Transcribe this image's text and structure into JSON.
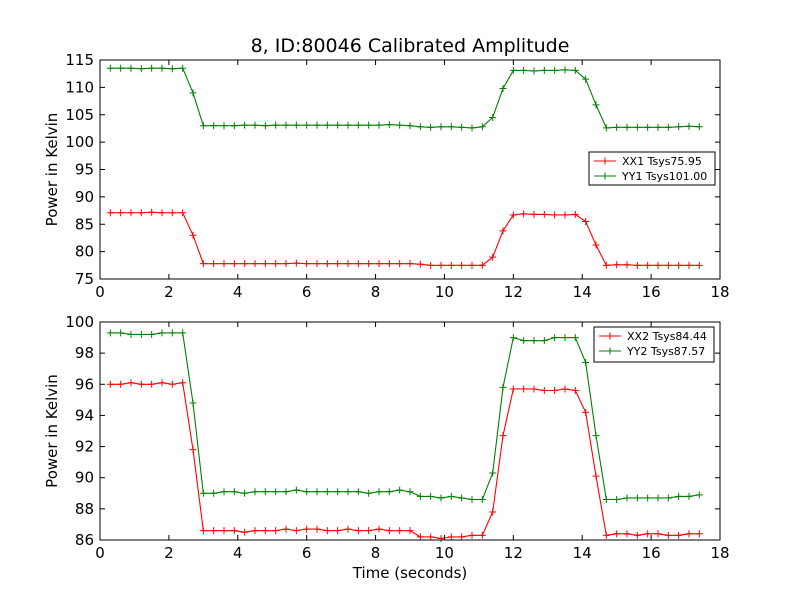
{
  "chart_data": [
    {
      "type": "line",
      "title": "8, ID:80046 Calibrated Amplitude",
      "xlabel": "",
      "ylabel": "Power in Kelvin",
      "xlim": [
        0,
        18
      ],
      "ylim": [
        75,
        115
      ],
      "xticks": [
        0,
        2,
        4,
        6,
        8,
        10,
        12,
        14,
        16,
        18
      ],
      "yticks": [
        75,
        80,
        85,
        90,
        95,
        100,
        105,
        110,
        115
      ],
      "legend_position": "center-right",
      "series": [
        {
          "name": "XX1 Tsys75.95",
          "color": "#ff0000",
          "x": [
            0.3,
            0.6,
            0.9,
            1.2,
            1.5,
            1.8,
            2.1,
            2.4,
            2.7,
            3.0,
            3.3,
            3.6,
            3.9,
            4.2,
            4.5,
            4.8,
            5.1,
            5.4,
            5.7,
            6.0,
            6.3,
            6.6,
            6.9,
            7.2,
            7.5,
            7.8,
            8.1,
            8.4,
            8.7,
            9.0,
            9.3,
            9.6,
            9.9,
            10.2,
            10.5,
            10.8,
            11.1,
            11.4,
            11.7,
            12.0,
            12.3,
            12.6,
            12.9,
            13.2,
            13.5,
            13.8,
            14.1,
            14.4,
            14.7,
            15.0,
            15.3,
            15.6,
            15.9,
            16.2,
            16.5,
            16.8,
            17.1,
            17.4
          ],
          "y": [
            87.1,
            87.1,
            87.1,
            87.1,
            87.2,
            87.1,
            87.1,
            87.1,
            83.0,
            77.8,
            77.8,
            77.8,
            77.8,
            77.8,
            77.8,
            77.8,
            77.8,
            77.8,
            77.9,
            77.8,
            77.8,
            77.8,
            77.8,
            77.8,
            77.8,
            77.8,
            77.8,
            77.8,
            77.8,
            77.8,
            77.7,
            77.5,
            77.5,
            77.5,
            77.5,
            77.5,
            77.5,
            79.0,
            83.8,
            86.7,
            86.9,
            86.8,
            86.8,
            86.7,
            86.7,
            86.8,
            85.5,
            81.2,
            77.5,
            77.6,
            77.6,
            77.5,
            77.5,
            77.5,
            77.5,
            77.5,
            77.5,
            77.5
          ]
        },
        {
          "name": "YY1 Tsys101.00",
          "color": "#008000",
          "x": [
            0.3,
            0.6,
            0.9,
            1.2,
            1.5,
            1.8,
            2.1,
            2.4,
            2.7,
            3.0,
            3.3,
            3.6,
            3.9,
            4.2,
            4.5,
            4.8,
            5.1,
            5.4,
            5.7,
            6.0,
            6.3,
            6.6,
            6.9,
            7.2,
            7.5,
            7.8,
            8.1,
            8.4,
            8.7,
            9.0,
            9.3,
            9.6,
            9.9,
            10.2,
            10.5,
            10.8,
            11.1,
            11.4,
            11.7,
            12.0,
            12.3,
            12.6,
            12.9,
            13.2,
            13.5,
            13.8,
            14.1,
            14.4,
            14.7,
            15.0,
            15.3,
            15.6,
            15.9,
            16.2,
            16.5,
            16.8,
            17.1,
            17.4
          ],
          "y": [
            113.5,
            113.5,
            113.5,
            113.4,
            113.5,
            113.5,
            113.4,
            113.5,
            109.0,
            103.0,
            103.0,
            103.0,
            103.0,
            103.1,
            103.1,
            103.0,
            103.1,
            103.1,
            103.1,
            103.1,
            103.1,
            103.1,
            103.1,
            103.1,
            103.1,
            103.1,
            103.1,
            103.2,
            103.1,
            103.0,
            102.8,
            102.7,
            102.8,
            102.8,
            102.7,
            102.6,
            102.8,
            104.5,
            109.8,
            113.1,
            113.1,
            113.0,
            113.1,
            113.1,
            113.2,
            113.1,
            111.5,
            106.8,
            102.6,
            102.7,
            102.7,
            102.7,
            102.7,
            102.7,
            102.7,
            102.8,
            102.9,
            102.8
          ]
        }
      ]
    },
    {
      "type": "line",
      "title": "",
      "xlabel": "Time (seconds)",
      "ylabel": "Power in Kelvin",
      "xlim": [
        0,
        18
      ],
      "ylim": [
        86,
        100
      ],
      "xticks": [
        0,
        2,
        4,
        6,
        8,
        10,
        12,
        14,
        16,
        18
      ],
      "yticks": [
        86,
        88,
        90,
        92,
        94,
        96,
        98,
        100
      ],
      "legend_position": "top-right",
      "series": [
        {
          "name": "XX2 Tsys84.44",
          "color": "#ff0000",
          "x": [
            0.3,
            0.6,
            0.9,
            1.2,
            1.5,
            1.8,
            2.1,
            2.4,
            2.7,
            3.0,
            3.3,
            3.6,
            3.9,
            4.2,
            4.5,
            4.8,
            5.1,
            5.4,
            5.7,
            6.0,
            6.3,
            6.6,
            6.9,
            7.2,
            7.5,
            7.8,
            8.1,
            8.4,
            8.7,
            9.0,
            9.3,
            9.6,
            9.9,
            10.2,
            10.5,
            10.8,
            11.1,
            11.4,
            11.7,
            12.0,
            12.3,
            12.6,
            12.9,
            13.2,
            13.5,
            13.8,
            14.1,
            14.4,
            14.7,
            15.0,
            15.3,
            15.6,
            15.9,
            16.2,
            16.5,
            16.8,
            17.1,
            17.4
          ],
          "y": [
            96.0,
            96.0,
            96.1,
            96.0,
            96.0,
            96.1,
            96.0,
            96.1,
            91.8,
            86.6,
            86.6,
            86.6,
            86.6,
            86.5,
            86.6,
            86.6,
            86.6,
            86.7,
            86.6,
            86.7,
            86.7,
            86.6,
            86.6,
            86.7,
            86.6,
            86.6,
            86.7,
            86.6,
            86.6,
            86.6,
            86.2,
            86.2,
            86.1,
            86.2,
            86.2,
            86.3,
            86.3,
            87.8,
            92.7,
            95.7,
            95.7,
            95.7,
            95.6,
            95.6,
            95.7,
            95.6,
            94.2,
            90.1,
            86.3,
            86.4,
            86.4,
            86.3,
            86.4,
            86.4,
            86.3,
            86.3,
            86.4,
            86.4
          ]
        },
        {
          "name": "YY2 Tsys87.57",
          "color": "#008000",
          "x": [
            0.3,
            0.6,
            0.9,
            1.2,
            1.5,
            1.8,
            2.1,
            2.4,
            2.7,
            3.0,
            3.3,
            3.6,
            3.9,
            4.2,
            4.5,
            4.8,
            5.1,
            5.4,
            5.7,
            6.0,
            6.3,
            6.6,
            6.9,
            7.2,
            7.5,
            7.8,
            8.1,
            8.4,
            8.7,
            9.0,
            9.3,
            9.6,
            9.9,
            10.2,
            10.5,
            10.8,
            11.1,
            11.4,
            11.7,
            12.0,
            12.3,
            12.6,
            12.9,
            13.2,
            13.5,
            13.8,
            14.1,
            14.4,
            14.7,
            15.0,
            15.3,
            15.6,
            15.9,
            16.2,
            16.5,
            16.8,
            17.1,
            17.4
          ],
          "y": [
            99.3,
            99.3,
            99.2,
            99.2,
            99.2,
            99.3,
            99.3,
            99.3,
            94.8,
            89.0,
            89.0,
            89.1,
            89.1,
            89.0,
            89.1,
            89.1,
            89.1,
            89.1,
            89.2,
            89.1,
            89.1,
            89.1,
            89.1,
            89.1,
            89.1,
            89.0,
            89.1,
            89.1,
            89.2,
            89.1,
            88.8,
            88.8,
            88.7,
            88.8,
            88.7,
            88.6,
            88.6,
            90.3,
            95.8,
            99.0,
            98.8,
            98.8,
            98.8,
            99.0,
            99.0,
            99.0,
            97.4,
            92.7,
            88.6,
            88.6,
            88.7,
            88.7,
            88.7,
            88.7,
            88.7,
            88.8,
            88.8,
            88.9
          ]
        }
      ]
    }
  ]
}
